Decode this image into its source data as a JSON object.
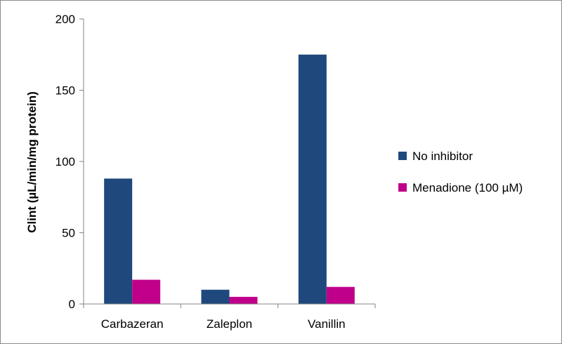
{
  "chart_data": {
    "type": "bar",
    "categories": [
      "Carbazeran",
      "Zaleplon",
      "Vanillin"
    ],
    "series": [
      {
        "name": "No inhibitor",
        "color": "#1f497d",
        "values": [
          88,
          10,
          175
        ]
      },
      {
        "name": "Menadione (100 µM)",
        "color": "#c0008a",
        "values": [
          17,
          5,
          12
        ]
      }
    ],
    "ylabel": "Clint (µL/min/mg protein)",
    "ylim": [
      0,
      200
    ],
    "yticks": [
      0,
      50,
      100,
      150,
      200
    ],
    "grid": false,
    "legend_position": "right"
  }
}
